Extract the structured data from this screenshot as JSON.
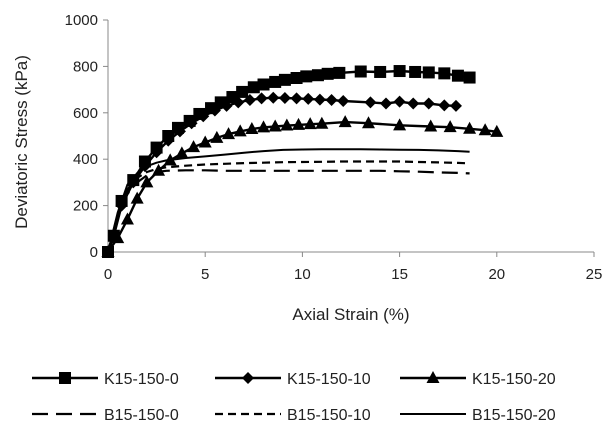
{
  "chart_data": {
    "type": "line",
    "xlabel": "Axial Strain (%)",
    "ylabel": "Deviatoric Stress (kPa)",
    "xlim": [
      0,
      25
    ],
    "ylim": [
      0,
      1000
    ],
    "xticks": [
      0,
      5,
      10,
      15,
      20,
      25
    ],
    "yticks": [
      0,
      200,
      400,
      600,
      800,
      1000
    ],
    "grid": false,
    "legend_position": "bottom",
    "series": [
      {
        "name": "K15-150-0",
        "marker": "square",
        "dash": "solid",
        "x": [
          0,
          0.3,
          0.7,
          1.3,
          1.9,
          2.5,
          3.1,
          3.6,
          4.2,
          4.7,
          5.3,
          5.8,
          6.4,
          6.9,
          7.5,
          8.0,
          8.6,
          9.1,
          9.7,
          10.2,
          10.8,
          11.3,
          11.9,
          13.0,
          14.0,
          15.0,
          15.8,
          16.5,
          17.3,
          18.0,
          18.6
        ],
        "y": [
          0,
          70,
          220,
          310,
          390,
          450,
          500,
          535,
          565,
          595,
          620,
          645,
          668,
          690,
          710,
          722,
          733,
          742,
          750,
          757,
          762,
          768,
          772,
          778,
          776,
          780,
          776,
          774,
          770,
          760,
          752
        ]
      },
      {
        "name": "K15-150-10",
        "marker": "diamond",
        "dash": "solid",
        "x": [
          0,
          0.3,
          0.7,
          1.3,
          1.9,
          2.5,
          3.1,
          3.7,
          4.3,
          4.9,
          5.5,
          6.1,
          6.7,
          7.3,
          7.9,
          8.5,
          9.1,
          9.7,
          10.3,
          10.9,
          11.5,
          12.1,
          13.5,
          14.3,
          15.0,
          15.7,
          16.5,
          17.3,
          17.9
        ],
        "y": [
          0,
          70,
          200,
          300,
          370,
          430,
          480,
          520,
          555,
          585,
          610,
          630,
          645,
          655,
          662,
          665,
          664,
          662,
          660,
          657,
          655,
          651,
          645,
          640,
          648,
          640,
          640,
          632,
          630
        ]
      },
      {
        "name": "K15-150-20",
        "marker": "triangle",
        "dash": "solid",
        "x": [
          0,
          0.5,
          1.0,
          1.5,
          2.0,
          2.6,
          3.2,
          3.8,
          4.4,
          5.0,
          5.6,
          6.2,
          6.8,
          7.4,
          8.0,
          8.6,
          9.2,
          9.8,
          10.4,
          11.0,
          12.2,
          13.4,
          15.0,
          16.6,
          17.6,
          18.6,
          19.4,
          20.0
        ],
        "y": [
          0,
          60,
          140,
          230,
          300,
          350,
          395,
          425,
          452,
          472,
          492,
          508,
          520,
          530,
          537,
          541,
          545,
          548,
          551,
          553,
          560,
          555,
          546,
          541,
          538,
          531,
          525,
          518
        ]
      },
      {
        "name": "B15-150-0",
        "marker": "none",
        "dash": "long",
        "x": [
          0,
          0.5,
          1.0,
          1.5,
          2.0,
          2.5,
          3.0,
          4.0,
          5.0,
          6.0,
          7.0,
          8.0,
          9.0,
          10.0,
          11.0,
          12.0,
          13.0,
          14.0,
          15.0,
          16.0,
          17.0,
          18.0,
          18.6
        ],
        "y": [
          0,
          150,
          250,
          300,
          330,
          345,
          350,
          352,
          352,
          350,
          350,
          350,
          350,
          350,
          350,
          350,
          350,
          350,
          348,
          346,
          343,
          341,
          339
        ]
      },
      {
        "name": "B15-150-10",
        "marker": "none",
        "dash": "short",
        "x": [
          0,
          0.5,
          1.0,
          1.5,
          2.0,
          2.5,
          3.0,
          4.0,
          5.0,
          6.0,
          7.0,
          8.0,
          9.0,
          10.0,
          11.0,
          12.0,
          13.0,
          14.0,
          15.0,
          16.0,
          17.0,
          18.0,
          18.6
        ],
        "y": [
          0,
          160,
          270,
          320,
          345,
          358,
          365,
          372,
          377,
          380,
          383,
          385,
          387,
          388,
          389,
          390,
          390,
          390,
          390,
          388,
          386,
          384,
          382
        ]
      },
      {
        "name": "B15-150-20",
        "marker": "none",
        "dash": "solid-thin",
        "x": [
          0,
          0.5,
          1.0,
          1.5,
          2.0,
          2.5,
          3.0,
          4.0,
          5.0,
          6.0,
          7.0,
          8.0,
          9.0,
          10.0,
          11.0,
          12.0,
          13.0,
          14.0,
          15.0,
          16.0,
          17.0,
          18.0,
          18.6
        ],
        "y": [
          0,
          170,
          290,
          340,
          370,
          385,
          395,
          405,
          412,
          420,
          428,
          435,
          440,
          442,
          443,
          443,
          443,
          442,
          441,
          440,
          438,
          435,
          432
        ]
      }
    ]
  }
}
